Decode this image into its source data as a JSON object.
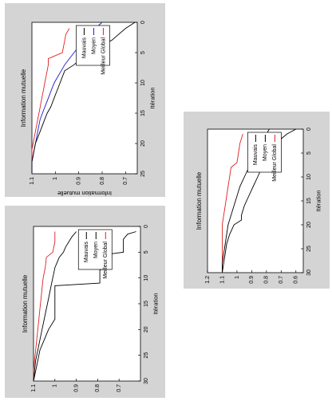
{
  "colors": {
    "red": "#e02020",
    "blue": "#1a1ad0",
    "black": "#000000",
    "figure_bg": "#d4d4d4"
  },
  "chart_data": [
    {
      "type": "line",
      "title": "Information mutuelle",
      "xlabel": "Itération",
      "ylabel": "Information mutuelle",
      "xlim": [
        0,
        25
      ],
      "ylim": [
        0.65,
        1.1
      ],
      "xticks": [
        "0",
        "5",
        "10",
        "15",
        "20",
        "25"
      ],
      "yticks": [
        "0.7",
        "0.8",
        "0.9",
        "1",
        "1.1"
      ],
      "legend": "top-right",
      "series": [
        {
          "name": "Meilleur Global",
          "color": "red",
          "x": [
            1,
            2,
            3,
            4,
            5,
            6,
            7,
            8,
            9,
            10,
            11,
            12,
            13,
            14,
            15,
            16,
            17,
            18,
            19,
            20,
            21,
            22,
            23,
            24,
            25
          ],
          "y": [
            0.94,
            0.955,
            0.96,
            0.965,
            0.97,
            1.03,
            1.03,
            1.035,
            1.04,
            1.045,
            1.05,
            1.055,
            1.06,
            1.065,
            1.07,
            1.075,
            1.08,
            1.085,
            1.09,
            1.095,
            1.1,
            1.1,
            1.1,
            1.1,
            1.1
          ]
        },
        {
          "name": "Moyen",
          "color": "blue",
          "x": [
            0,
            1,
            2,
            3,
            4,
            5,
            6,
            7,
            8,
            9,
            10,
            11,
            12,
            13,
            14,
            15,
            16,
            17,
            18,
            19,
            20,
            21,
            22,
            23,
            24,
            25
          ],
          "y": [
            0.8,
            0.83,
            0.86,
            0.88,
            0.9,
            0.92,
            0.94,
            0.96,
            0.975,
            0.99,
            1.005,
            1.015,
            1.025,
            1.035,
            1.045,
            1.055,
            1.065,
            1.07,
            1.075,
            1.08,
            1.085,
            1.09,
            1.095,
            1.1,
            1.1,
            1.1
          ]
        },
        {
          "name": "Mauvais",
          "color": "black",
          "x": [
            0,
            1,
            2,
            3,
            3.5,
            4,
            5,
            6,
            7,
            8,
            9,
            10,
            11,
            12,
            13,
            14,
            15,
            16,
            17,
            18,
            19,
            20,
            21,
            22,
            23,
            24,
            25
          ],
          "y": [
            0.66,
            0.7,
            0.73,
            0.76,
            0.8,
            0.86,
            0.87,
            0.89,
            0.92,
            0.96,
            0.97,
            0.98,
            0.99,
            1.0,
            1.01,
            1.02,
            1.035,
            1.045,
            1.055,
            1.065,
            1.075,
            1.085,
            1.09,
            1.095,
            1.1,
            1.1,
            1.1
          ]
        }
      ]
    },
    {
      "type": "line",
      "title": "Information mutuelle",
      "xlabel": "Itération",
      "ylabel": "Information mutuelle",
      "xlim": [
        0,
        30
      ],
      "ylim": [
        0.6,
        1.1
      ],
      "xticks": [
        "0",
        "5",
        "10",
        "15",
        "20",
        "25",
        "30"
      ],
      "yticks": [
        "0.7",
        "0.8",
        "0.9",
        "1",
        "1.1"
      ],
      "legend": "top-right",
      "series": [
        {
          "name": "Meilleur Global",
          "color": "red",
          "x": [
            1,
            3,
            5,
            6,
            8,
            10,
            12,
            14,
            16,
            18,
            20,
            22,
            24,
            26,
            28,
            30
          ],
          "y": [
            1.0,
            1.0,
            1.01,
            1.04,
            1.045,
            1.055,
            1.06,
            1.065,
            1.07,
            1.075,
            1.08,
            1.085,
            1.09,
            1.095,
            1.1,
            1.1
          ]
        },
        {
          "name": "Moyen",
          "color": "black",
          "x": [
            1,
            2,
            3,
            4,
            5,
            6,
            7,
            8,
            9,
            10,
            12,
            14,
            16,
            18,
            20,
            22,
            24,
            26,
            28,
            30
          ],
          "y": [
            0.9,
            0.92,
            0.935,
            0.95,
            0.96,
            0.98,
            0.99,
            1.0,
            1.005,
            1.01,
            1.02,
            1.03,
            1.04,
            1.05,
            1.06,
            1.07,
            1.08,
            1.09,
            1.095,
            1.1
          ]
        },
        {
          "name": "Mauvais",
          "color": "black",
          "x": [
            1,
            1.5,
            2,
            2.5,
            5,
            5.5,
            8,
            8.5,
            11,
            11.5,
            12,
            18,
            20,
            22,
            24,
            26,
            28,
            30
          ],
          "y": [
            0.62,
            0.66,
            0.67,
            0.68,
            0.68,
            0.77,
            0.77,
            0.79,
            0.79,
            1.0,
            1.0,
            1.0,
            1.03,
            1.05,
            1.07,
            1.08,
            1.09,
            1.1
          ]
        }
      ]
    },
    {
      "type": "line",
      "title": "Information mutuelle",
      "xlabel": "Itération",
      "ylabel": "Information mutuelle",
      "xlim": [
        0,
        30
      ],
      "ylim": [
        0.55,
        1.2
      ],
      "xticks": [
        "0",
        "5",
        "10",
        "15",
        "20",
        "25",
        "30"
      ],
      "yticks": [
        "0.6",
        "0.7",
        "0.8",
        "0.9",
        "1",
        "1.1",
        "1.2"
      ],
      "legend": "top-right",
      "series": [
        {
          "name": "Meilleur Global",
          "color": "red",
          "x": [
            1,
            3,
            5,
            7,
            8,
            10,
            12,
            14,
            16,
            18,
            20,
            22,
            24,
            26,
            28,
            30
          ],
          "y": [
            0.96,
            0.98,
            0.99,
            1.0,
            1.04,
            1.05,
            1.06,
            1.07,
            1.08,
            1.09,
            1.1,
            1.1,
            1.1,
            1.1,
            1.1,
            1.1
          ]
        },
        {
          "name": "Moyen",
          "color": "black",
          "x": [
            0,
            1,
            2,
            4,
            6,
            8,
            10,
            12,
            14,
            16,
            18,
            20,
            22,
            24,
            26,
            28,
            30
          ],
          "y": [
            0.78,
            0.8,
            0.83,
            0.86,
            0.89,
            0.92,
            0.95,
            0.98,
            1.0,
            1.02,
            1.04,
            1.06,
            1.07,
            1.08,
            1.09,
            1.1,
            1.1
          ]
        },
        {
          "name": "Mauvais",
          "color": "black",
          "x": [
            0,
            1,
            2,
            3,
            4,
            6,
            8,
            10,
            12,
            14,
            16,
            18,
            19,
            20,
            22,
            24,
            26,
            28,
            30
          ],
          "y": [
            0.6,
            0.66,
            0.7,
            0.73,
            0.76,
            0.8,
            0.83,
            0.86,
            0.89,
            0.92,
            0.95,
            0.97,
            0.97,
            1.02,
            1.05,
            1.07,
            1.08,
            1.09,
            1.1
          ]
        }
      ]
    }
  ]
}
